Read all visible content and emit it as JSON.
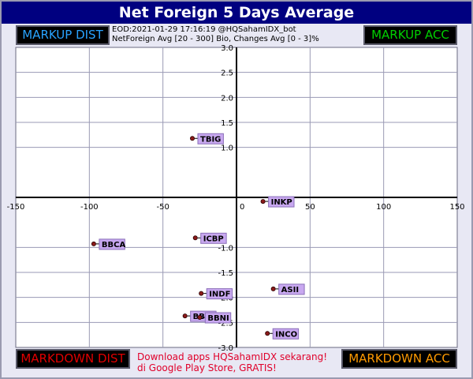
{
  "title": "Net Foreign 5 Days Average",
  "quadrants": {
    "top_left": "MARKUP DIST",
    "top_right": "MARKUP ACC",
    "bottom_left": "MARKDOWN DIST",
    "bottom_right": "MARKDOWN ACC"
  },
  "info_line1": "EOD:2021-01-29 17:16:19 @HQSahamIDX_bot",
  "info_line2": "NetForeign Avg [20 - 300] Bio, Changes Avg [0 - 3]%",
  "promo_line1": "Download apps HQSahamIDX sekarang!",
  "promo_line2": "di Google Play Store, GRATIS!",
  "colors": {
    "title_bg": "#000080",
    "plot_bg": "#ffffff",
    "grid": "#9a9ab4",
    "point": "#8b1a1a",
    "label_bg": "#c8a8f0",
    "label_border": "#8a6fb8"
  },
  "chart_data": {
    "type": "scatter",
    "xlim": [
      -150,
      150
    ],
    "ylim": [
      -3.0,
      3.0
    ],
    "x_ticks": [
      -150,
      -100,
      -50,
      0,
      50,
      100,
      150
    ],
    "y_ticks": [
      3.0,
      2.5,
      2.0,
      1.5,
      1.0,
      -1.0,
      -1.5,
      -2.0,
      -2.5,
      -3.0
    ],
    "x_tick_labels": [
      "-150",
      "-100",
      "-50",
      "0",
      "50",
      "100",
      "150"
    ],
    "y_tick_labels": [
      "3.0",
      "2.5",
      "2.0",
      "1.5",
      "1.0",
      "-1.0",
      "-1.5",
      "-2.0",
      "-2.5",
      "-3.0"
    ],
    "grid": true,
    "points": [
      {
        "label": "TBIG",
        "x": -30,
        "y": 1.18
      },
      {
        "label": "INKP",
        "x": 18,
        "y": -0.08
      },
      {
        "label": "BBCA",
        "x": -97,
        "y": -0.93
      },
      {
        "label": "ICBP",
        "x": -28,
        "y": -0.81
      },
      {
        "label": "ASII",
        "x": 25,
        "y": -1.83
      },
      {
        "label": "INDF",
        "x": -24,
        "y": -1.92
      },
      {
        "label": "BBRI",
        "x": -35,
        "y": -2.37
      },
      {
        "label": "BBNI",
        "x": -25,
        "y": -2.4
      },
      {
        "label": "INCO",
        "x": 21,
        "y": -2.72
      }
    ]
  }
}
